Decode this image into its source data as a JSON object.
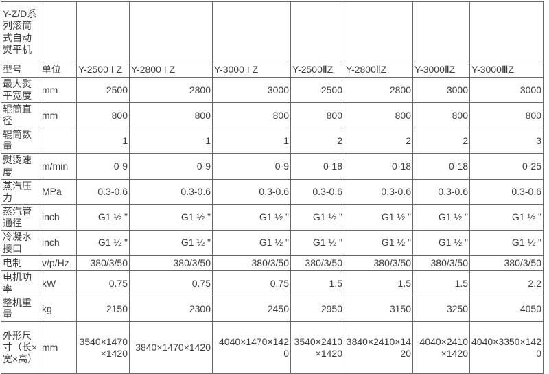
{
  "table": {
    "title": "Y-Z/D系列滚筒式自动熨平机",
    "model_label": "型号",
    "unit_label": "单位",
    "models": [
      "Y-2500 I Z",
      "Y-2800 I Z",
      "Y-3000 I Z",
      "Y-2500ⅡZ",
      "Y-2800ⅡZ",
      "Y-3000ⅡZ",
      "Y-3000ⅢZ"
    ],
    "rows": [
      {
        "label": "最大熨平宽度",
        "unit": "mm",
        "values": [
          "2500",
          "2800",
          "3000",
          "2500",
          "2800",
          "3000",
          "3000"
        ]
      },
      {
        "label": "辊筒直径",
        "unit": "mm",
        "values": [
          "800",
          "800",
          "800",
          "800",
          "800",
          "800",
          "800"
        ]
      },
      {
        "label": "辊筒数量",
        "unit": "",
        "values": [
          "1",
          "1",
          "1",
          "2",
          "2",
          "2",
          "3"
        ]
      },
      {
        "label": "熨烫速度",
        "unit": "m/min",
        "values": [
          "0-9",
          "0-9",
          "0-9",
          "0-18",
          "0-18",
          "0-18",
          "0-25"
        ]
      },
      {
        "label": "蒸汽压力",
        "unit": "MPa",
        "values": [
          "0.3-0.6",
          "0.3-0.6",
          "0.3-0.6",
          "0.3-0.6",
          "0.3-0.6",
          "0.3-0.6",
          "0.3-0.6"
        ]
      },
      {
        "label": "蒸汽管通径",
        "unit": "inch",
        "values": [
          "G1 ½ \"",
          "G1 ½ \"",
          "G1 ½ \"",
          "G1 ½ \"",
          "G1 ½ \"",
          "G1 ½ \"",
          "G1 ½ \""
        ]
      },
      {
        "label": "冷凝水接口",
        "unit": "inch",
        "values": [
          "G1 ½ \"",
          "G1 ½ \"",
          "G1 ½ \"",
          "G1 ½ \"",
          "G1 ½ \"",
          "G1 ½ \"",
          "G1 ½ \""
        ]
      },
      {
        "label": "电制",
        "unit": "v/p/Hz",
        "values": [
          "380/3/50",
          "380/3/50",
          "380/3/50",
          "380/3/50",
          "380/3/50",
          "380/3/50",
          "380/3/50"
        ]
      },
      {
        "label": "电机功率",
        "unit": "kW",
        "values": [
          "0.75",
          "0.75",
          "0.75",
          "1.5",
          "1.5",
          "1.5",
          "2.2"
        ]
      },
      {
        "label": "整机重量",
        "unit": "kg",
        "values": [
          "2150",
          "2300",
          "2450",
          "2950",
          "3150",
          "3250",
          "4050"
        ]
      },
      {
        "label": "外形尺寸（长×宽×高）",
        "unit": "mm",
        "values": [
          "3540×1470×1420",
          "3840×1470×1420",
          "4040×1470×1420",
          "3540×2410×1420",
          "3840×2410×1420",
          "4040×2410×1420",
          "4040×3350×1420"
        ]
      }
    ]
  }
}
